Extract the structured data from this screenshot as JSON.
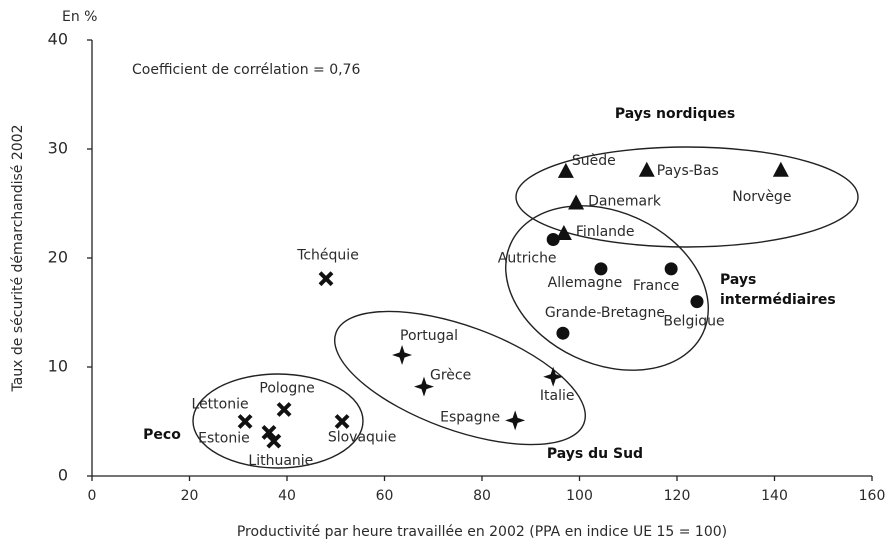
{
  "chart_data": {
    "type": "scatter",
    "unit_label": "En %",
    "annotation": "Coefficient de corrélation = 0,76",
    "x_label": "Productivité par heure travaillée en 2002 (PPA en indice UE 15 = 100)",
    "y_label": "Taux de sécurité démarchandisé 2002",
    "xlim": [
      0,
      160
    ],
    "xticks": [
      0,
      20,
      40,
      60,
      80,
      100,
      120,
      140,
      160
    ],
    "ylim": [
      0,
      40
    ],
    "yticks": [
      0,
      10,
      20,
      30,
      40
    ],
    "series": [
      {
        "name": "Pays nordiques",
        "marker": "triangle",
        "color": "#111111",
        "labels": [
          "Suède",
          "Pays-Bas",
          "Norvège",
          "Danemark",
          "Finlande"
        ],
        "x": [
          97.2,
          113.8,
          141.3,
          99.3,
          96.8
        ],
        "values": [
          27.9,
          28,
          28,
          25,
          22.2
        ]
      },
      {
        "name": "Pays intermédiaires",
        "marker": "circle",
        "color": "#111111",
        "labels": [
          "Autriche",
          "Allemagne",
          "France",
          "Belgique",
          "Grande-Bretagne"
        ],
        "x": [
          94.6,
          104.4,
          118.8,
          124.1,
          96.6
        ],
        "values": [
          21.7,
          19,
          19,
          16,
          13.1
        ]
      },
      {
        "name": "Pays du Sud",
        "marker": "star",
        "color": "#111111",
        "labels": [
          "Portugal",
          "Grèce",
          "Italie",
          "Espagne"
        ],
        "x": [
          63.6,
          68.1,
          94.6,
          86.8
        ],
        "values": [
          11.1,
          8.2,
          9.1,
          5.1
        ]
      },
      {
        "name": "Peco",
        "marker": "cross",
        "color": "#111111",
        "labels": [
          "Tchéquie",
          "Lettonie",
          "Pologne",
          "Slovaquie",
          "Estonie",
          "Lithuanie"
        ],
        "x": [
          48,
          31.4,
          39.4,
          51.3,
          36.3,
          37.3
        ],
        "values": [
          18.1,
          5,
          6.1,
          5,
          4,
          3.2
        ]
      }
    ]
  }
}
